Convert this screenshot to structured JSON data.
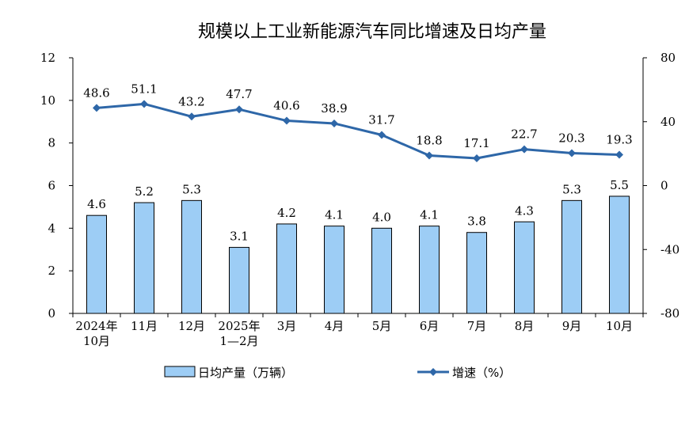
{
  "chart_data": {
    "type": "bar+line",
    "title": "规模以上工业新能源汽车同比增速及日均产量",
    "categories": [
      [
        "2024年",
        "10月"
      ],
      [
        "11月"
      ],
      [
        "12月"
      ],
      [
        "2025年",
        "1—2月"
      ],
      [
        "3月"
      ],
      [
        "4月"
      ],
      [
        "5月"
      ],
      [
        "6月"
      ],
      [
        "7月"
      ],
      [
        "8月"
      ],
      [
        "9月"
      ],
      [
        "10月"
      ]
    ],
    "series": [
      {
        "name": "日均产量（万辆）",
        "type": "bar",
        "axis": "left",
        "values": [
          4.6,
          5.2,
          5.3,
          3.1,
          4.2,
          4.1,
          4.0,
          4.1,
          3.8,
          4.3,
          5.3,
          5.5
        ],
        "labels": [
          "4.6",
          "5.2",
          "5.3",
          "3.1",
          "4.2",
          "4.1",
          "4.0",
          "4.1",
          "3.8",
          "4.3",
          "5.3",
          "5.5"
        ],
        "color": "#9dcdf5",
        "border": "#000000"
      },
      {
        "name": "增速（%）",
        "type": "line",
        "axis": "right",
        "values": [
          48.6,
          51.1,
          43.2,
          47.7,
          40.6,
          38.9,
          31.7,
          18.8,
          17.1,
          22.7,
          20.3,
          19.3
        ],
        "labels": [
          "48.6",
          "51.1",
          "43.2",
          "47.7",
          "40.6",
          "38.9",
          "31.7",
          "18.8",
          "17.1",
          "22.7",
          "20.3",
          "19.3"
        ],
        "color": "#2e67a8"
      }
    ],
    "y_left": {
      "min": 0,
      "max": 12,
      "ticks": [
        "0",
        "2",
        "4",
        "6",
        "8",
        "10",
        "12"
      ]
    },
    "y_right": {
      "min": -80,
      "max": 80,
      "ticks": [
        "-80",
        "-40",
        "0",
        "40",
        "80"
      ]
    },
    "grid": false,
    "legend_position": "bottom"
  }
}
